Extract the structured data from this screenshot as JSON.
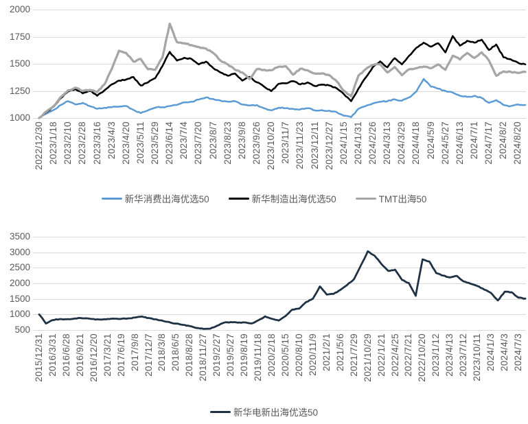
{
  "page": {
    "background": "#ffffff",
    "grid_color": "#d9d9d9",
    "axis_text_color": "#595959"
  },
  "chart_data": [
    {
      "type": "line",
      "title": "",
      "xlabel": "",
      "ylabel": "",
      "ylim": [
        1000,
        2000
      ],
      "yticks": [
        2000,
        1750,
        1500,
        1250,
        1000
      ],
      "grid": true,
      "legend_position": "bottom",
      "points_per_category": 2,
      "categories": [
        "2022/12/30",
        "2023/1/18",
        "2023/2/10",
        "2023/2/28",
        "2023/3/16",
        "2023/4/3",
        "2023/4/20",
        "2023/5/11",
        "2023/5/29",
        "2023/6/14",
        "2023/7/4",
        "2023/7/20",
        "2023/8/7",
        "2023/8/23",
        "2023/9/8",
        "2023/9/26",
        "2023/10/20",
        "2023/11/7",
        "2023/11/23",
        "2023/12/11",
        "2023/12/27",
        "2024/1/15",
        "2024/1/31",
        "2024/2/26",
        "2024/3/13",
        "2024/3/29",
        "2024/4/18",
        "2024/5/9",
        "2024/5/27",
        "2024/6/13",
        "2024/7/1",
        "2024/7/17",
        "2024/8/2",
        "2024/8/20"
      ],
      "series": [
        {
          "name": "新华消费出海优选50",
          "color": "#5b9bd5",
          "values": [
            1000,
            1040,
            1075,
            1120,
            1155,
            1125,
            1140,
            1110,
            1085,
            1095,
            1100,
            1105,
            1110,
            1075,
            1045,
            1070,
            1095,
            1100,
            1110,
            1120,
            1145,
            1150,
            1170,
            1190,
            1175,
            1160,
            1150,
            1155,
            1125,
            1115,
            1120,
            1090,
            1070,
            1095,
            1090,
            1085,
            1080,
            1090,
            1070,
            1072,
            1068,
            1055,
            1020,
            1008,
            1085,
            1110,
            1135,
            1150,
            1155,
            1172,
            1160,
            1190,
            1245,
            1360,
            1290,
            1270,
            1250,
            1235,
            1205,
            1195,
            1205,
            1185,
            1140,
            1165,
            1120,
            1110,
            1125,
            1120
          ]
        },
        {
          "name": "新华制造出海优选50",
          "color": "#000000",
          "values": [
            1000,
            1055,
            1105,
            1185,
            1245,
            1268,
            1228,
            1252,
            1205,
            1255,
            1310,
            1345,
            1355,
            1378,
            1300,
            1328,
            1368,
            1480,
            1610,
            1530,
            1555,
            1545,
            1495,
            1520,
            1460,
            1420,
            1390,
            1410,
            1345,
            1380,
            1330,
            1290,
            1248,
            1315,
            1320,
            1340,
            1310,
            1328,
            1295,
            1308,
            1300,
            1275,
            1220,
            1155,
            1270,
            1372,
            1470,
            1522,
            1468,
            1552,
            1495,
            1575,
            1648,
            1695,
            1658,
            1690,
            1605,
            1756,
            1668,
            1712,
            1695,
            1722,
            1628,
            1678,
            1560,
            1542,
            1510,
            1495
          ]
        },
        {
          "name": "TMT出海50",
          "color": "#a6a6a6",
          "values": [
            1000,
            1060,
            1110,
            1195,
            1255,
            1280,
            1250,
            1260,
            1240,
            1310,
            1450,
            1620,
            1600,
            1520,
            1545,
            1450,
            1445,
            1560,
            1870,
            1700,
            1690,
            1672,
            1655,
            1640,
            1600,
            1530,
            1495,
            1445,
            1420,
            1360,
            1450,
            1445,
            1440,
            1472,
            1478,
            1400,
            1455,
            1440,
            1410,
            1412,
            1395,
            1340,
            1250,
            1200,
            1390,
            1450,
            1490,
            1495,
            1420,
            1470,
            1395,
            1450,
            1460,
            1475,
            1460,
            1495,
            1445,
            1575,
            1540,
            1600,
            1555,
            1605,
            1530,
            1390,
            1430,
            1425,
            1415,
            1425
          ]
        }
      ]
    },
    {
      "type": "line",
      "title": "",
      "xlabel": "",
      "ylabel": "",
      "ylim": [
        500,
        3500
      ],
      "yticks": [
        3500,
        3000,
        2500,
        2000,
        1500,
        1000,
        500
      ],
      "grid": true,
      "legend_position": "bottom",
      "points_per_category": 2,
      "categories": [
        "2015/12/31",
        "2016/3/31",
        "2016/6/28",
        "2016/9/21",
        "2016/12/20",
        "2017/3/21",
        "2017/6/19",
        "2017/9/8",
        "2017/12/7",
        "2018/3/8",
        "2018/6/5",
        "2018/8/28",
        "2018/11/27",
        "2019/2/27",
        "2019/5/27",
        "2019/8/19",
        "2019/11/18",
        "2020/2/18",
        "2020/5/15",
        "2020/8/10",
        "2020/11/9",
        "2021/2/1",
        "2021/5/6",
        "2021/7/29",
        "2021/10/29",
        "2022/1/21",
        "2022/4/25",
        "2022/7/21",
        "2022/10/20",
        "2023/1/12",
        "2023/4/13",
        "2023/7/12",
        "2023/10/11",
        "2024/1/3",
        "2024/4/3",
        "2024/7/3"
      ],
      "series": [
        {
          "name": "新华电新出海优选50",
          "color": "#1f3245",
          "values": [
            1000,
            710,
            820,
            850,
            845,
            860,
            885,
            875,
            850,
            835,
            855,
            865,
            860,
            875,
            900,
            935,
            885,
            845,
            800,
            755,
            705,
            665,
            625,
            565,
            535,
            545,
            640,
            735,
            755,
            735,
            745,
            710,
            810,
            940,
            860,
            805,
            950,
            1160,
            1190,
            1400,
            1510,
            1900,
            1640,
            1660,
            1790,
            1950,
            2140,
            2580,
            3030,
            2890,
            2620,
            2400,
            2440,
            2110,
            2010,
            1600,
            2770,
            2700,
            2330,
            2250,
            2190,
            2240,
            2060,
            1990,
            1915,
            1800,
            1690,
            1450,
            1730,
            1715,
            1540,
            1510
          ]
        }
      ]
    }
  ]
}
